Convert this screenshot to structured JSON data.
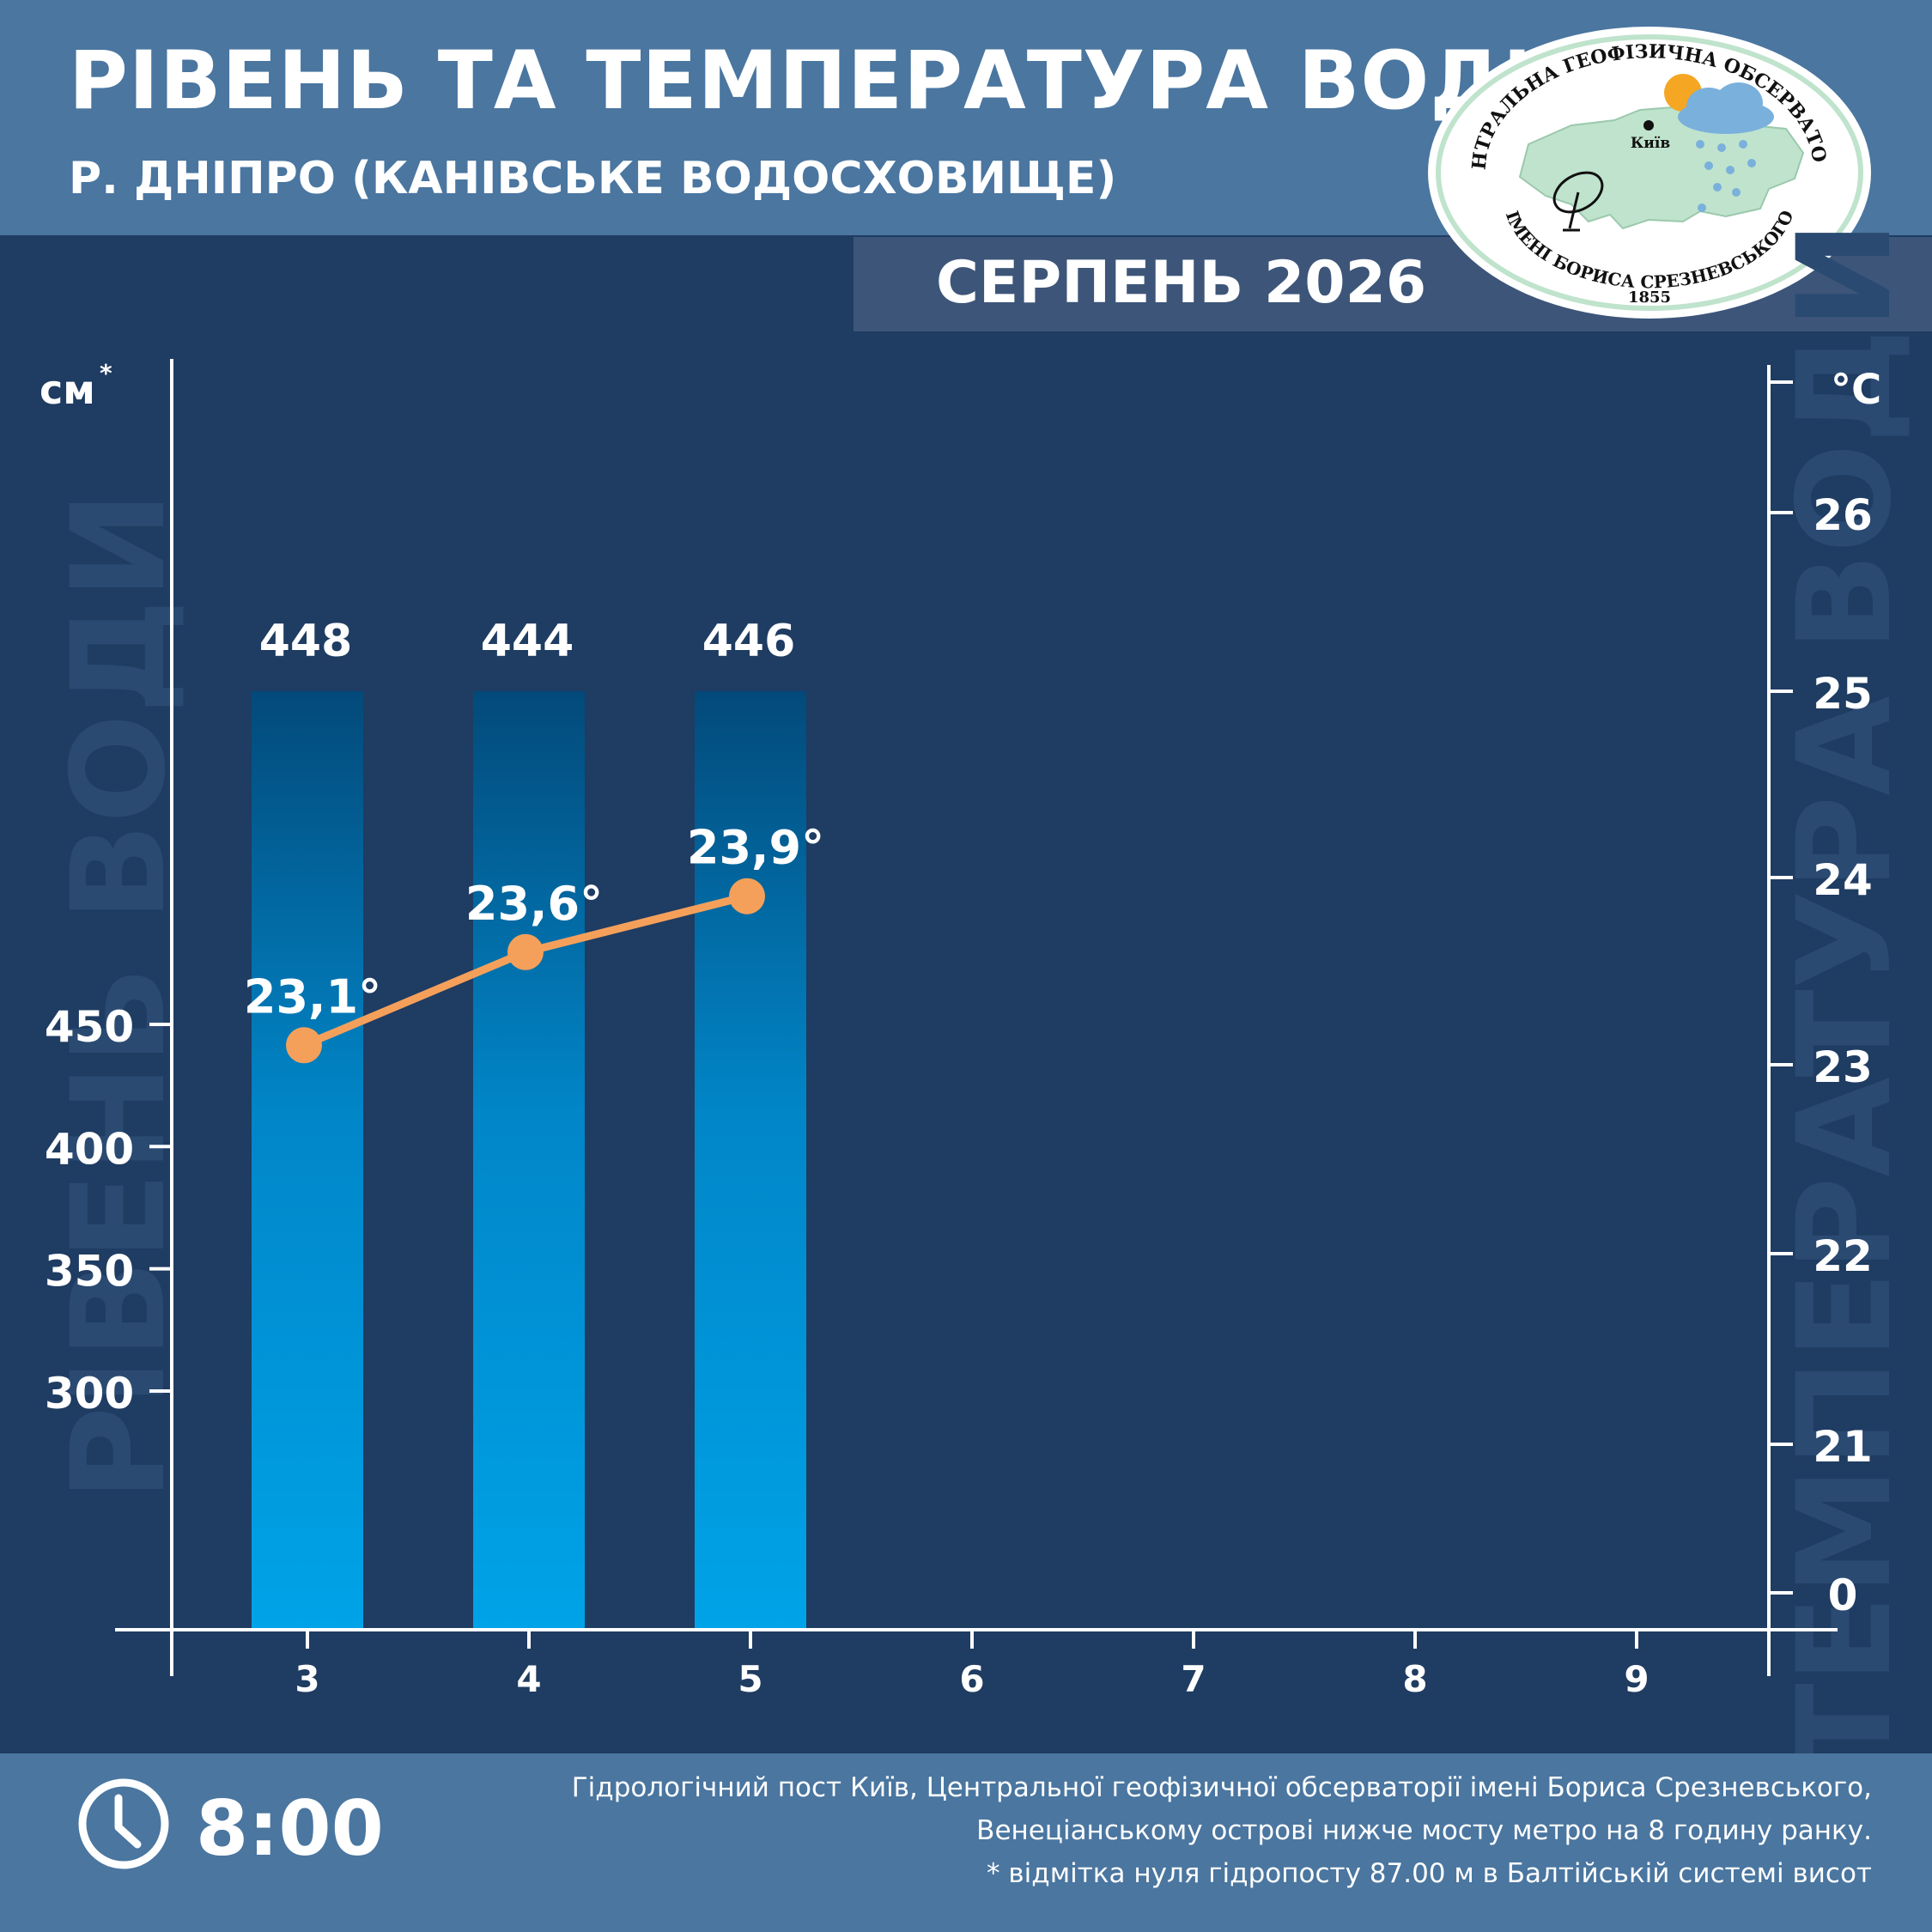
{
  "header": {
    "title": "РІВЕНЬ ТА ТЕМПЕРАТУРА ВОДИ",
    "subtitle": "Р. ДНІПРО (КАНІВСЬКЕ ВОДОСХОВИЩЕ)",
    "month": "СЕРПЕНЬ 2026"
  },
  "logo": {
    "top_text": "ЦЕНТРАЛЬНА ГЕОФІЗИЧНА ОБСЕРВАТОРІЯ",
    "bottom_text": "ІМЕНІ БОРИСА СРЕЗНЕВСЬКОГО",
    "year": "1855",
    "city": "Київ"
  },
  "chart_data": {
    "type": "bar",
    "categories": [
      "3",
      "4",
      "5",
      "6",
      "7",
      "8",
      "9"
    ],
    "left_axis": {
      "unit": "см",
      "unit_mark": "*",
      "watermark": "РІВЕНЬ ВОДИ",
      "ticks": [
        450,
        400,
        350,
        300
      ],
      "ylim": [
        254,
        503
      ]
    },
    "right_axis": {
      "unit": "°С",
      "watermark": "ТЕМПЕРАТУРА ВОДИ",
      "ticks": [
        "26",
        "25",
        "24",
        "23",
        "22",
        "21",
        "0"
      ]
    },
    "series": [
      {
        "kind": "bar",
        "values": [
          448,
          444,
          446,
          null,
          null,
          null,
          null
        ],
        "labels": [
          "448",
          "444",
          "446"
        ]
      },
      {
        "kind": "line",
        "values": [
          23.1,
          23.6,
          23.9,
          null,
          null,
          null,
          null
        ],
        "labels": [
          "23,1°",
          "23,6°",
          "23,9°"
        ],
        "color": "#f5a05a"
      }
    ],
    "colors": {
      "bar_top": "#034a7a",
      "bar_bottom": "#00a3e8",
      "line": "#f5a05a"
    }
  },
  "footer": {
    "time": "8:00",
    "notes": [
      "Гідрологічний пост Київ, Центральної геофізичної обсерваторії імені Бориса Срезневського,",
      "Венеціанському острові нижче мосту метро  на 8 годину ранку.",
      "* відмітка нуля гідропосту 87.00 м в Балтійській системі висот"
    ]
  }
}
